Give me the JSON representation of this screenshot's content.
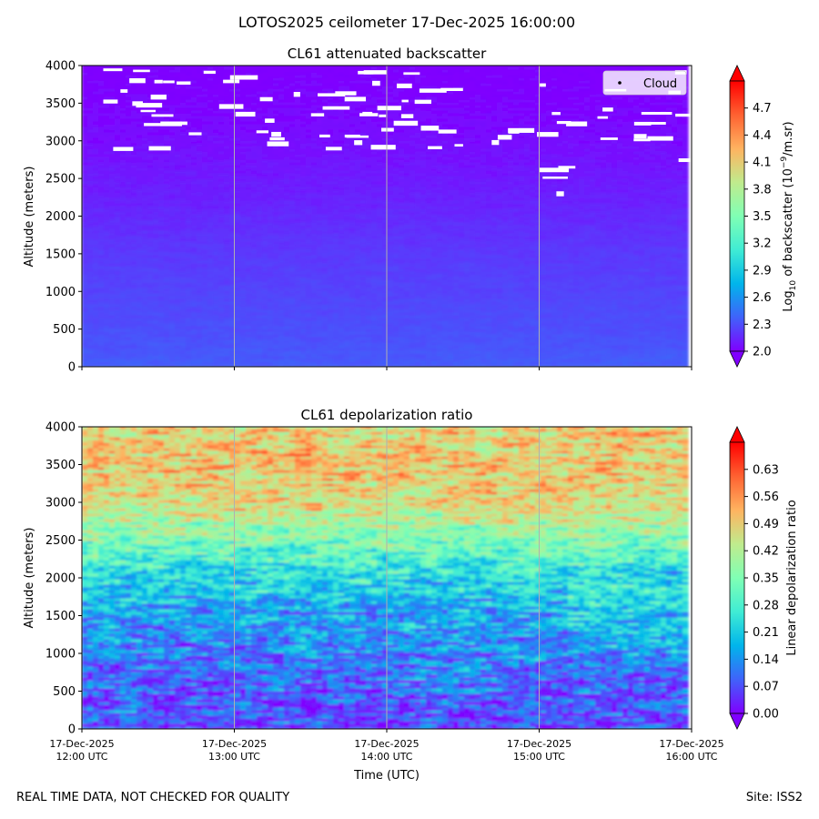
{
  "figure": {
    "suptitle": "LOTOS2025 ceilometer 17-Dec-2025 16:00:00",
    "footer_left": "REAL TIME DATA, NOT CHECKED FOR QUALITY",
    "footer_right": "Site: ISS2"
  },
  "chart_data": [
    {
      "type": "heatmap",
      "title": "CL61 attenuated backscatter",
      "xlabel": "",
      "ylabel": "Altitude (meters)",
      "xlim": [
        "2025-12-17 12:00",
        "2025-12-17 16:00"
      ],
      "ylim": [
        0,
        4000
      ],
      "yticks": [
        "0",
        "500",
        "1000",
        "1500",
        "2000",
        "2500",
        "3000",
        "3500",
        "4000"
      ],
      "grid": "vertical lines at hourly ticks",
      "legend": {
        "placement": "top-right",
        "entries": [
          "Cloud"
        ]
      },
      "colormap": "rainbow",
      "colorbar": {
        "label_prefix": "Log",
        "label_sub": "10",
        "label_mid": " of backscatter (10",
        "label_sup": "−9",
        "label_suffix": "/m.sr)",
        "range": [
          2.0,
          5.0
        ],
        "ticks": [
          "2.0",
          "2.3",
          "2.6",
          "2.9",
          "3.2",
          "3.5",
          "3.8",
          "4.1",
          "4.4",
          "4.7"
        ]
      },
      "profile": {
        "altitude": [
          0,
          500,
          1000,
          1500,
          2000,
          2500,
          3000,
          3500,
          4000
        ],
        "value": [
          2.35,
          2.3,
          2.26,
          2.22,
          2.16,
          2.1,
          2.05,
          2.02,
          2.0
        ]
      },
      "cloud_detection": "scattered cloud returns between about 2300 and 4000 m, denser after 15:00 UTC"
    },
    {
      "type": "heatmap",
      "title": "CL61 depolarization ratio",
      "xlabel": "Time (UTC)",
      "ylabel": "Altitude (meters)",
      "xlim": [
        "2025-12-17 12:00",
        "2025-12-17 16:00"
      ],
      "ylim": [
        0,
        4000
      ],
      "yticks": [
        "0",
        "500",
        "1000",
        "1500",
        "2000",
        "2500",
        "3000",
        "3500",
        "4000"
      ],
      "xticks": [
        [
          "17-Dec-2025",
          "12:00 UTC"
        ],
        [
          "17-Dec-2025",
          "13:00 UTC"
        ],
        [
          "17-Dec-2025",
          "14:00 UTC"
        ],
        [
          "17-Dec-2025",
          "15:00 UTC"
        ],
        [
          "17-Dec-2025",
          "16:00 UTC"
        ]
      ],
      "grid": "vertical lines at hourly ticks",
      "colormap": "rainbow",
      "colorbar": {
        "label": "Linear depolarization ratio",
        "range": [
          0.0,
          0.7
        ],
        "ticks": [
          "0.00",
          "0.07",
          "0.14",
          "0.21",
          "0.28",
          "0.35",
          "0.42",
          "0.49",
          "0.56",
          "0.63"
        ]
      },
      "profile": {
        "altitude": [
          0,
          500,
          1000,
          1500,
          2000,
          2500,
          3000,
          3500,
          4000
        ],
        "value": [
          0.05,
          0.08,
          0.12,
          0.16,
          0.22,
          0.35,
          0.47,
          0.5,
          0.48
        ]
      }
    }
  ]
}
